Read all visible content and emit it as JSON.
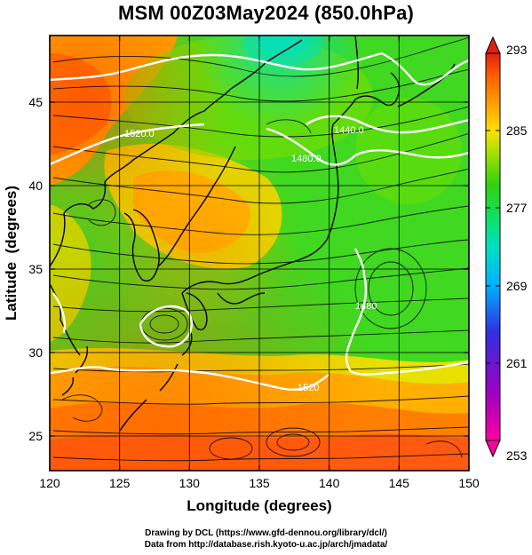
{
  "title": "MSM 00Z03May2024 (850.0hPa)",
  "x_axis": {
    "label": "Longitude (degrees)",
    "ticks": [
      "120",
      "125",
      "130",
      "135",
      "140",
      "145",
      "150"
    ],
    "range": [
      120,
      150
    ]
  },
  "y_axis": {
    "label": "Latitude  (degrees)",
    "ticks": [
      "25",
      "30",
      "35",
      "40",
      "45"
    ],
    "range": [
      22.5,
      47.5
    ]
  },
  "colorbar": {
    "ticks": [
      "293",
      "285",
      "277",
      "269",
      "261",
      "253"
    ],
    "range": [
      253,
      293
    ],
    "colors": [
      "#ff00a0",
      "#a000c0",
      "#3030e0",
      "#00b0ff",
      "#00e0c0",
      "#10e060",
      "#30d010",
      "#a0e000",
      "#ffe000",
      "#ffa000",
      "#ff6000",
      "#ff3000",
      "#e02010"
    ]
  },
  "contour_labels": [
    "1520.0",
    "1480.0",
    "1440.0",
    "1520",
    "1480"
  ],
  "credit": {
    "line1": "Drawing by DCL (https://www.gfd-dennou.org/library/dcl/)",
    "line2": "Data from http://database.rish.kyoto-u.ac.jp/arch/jmadata/"
  }
}
